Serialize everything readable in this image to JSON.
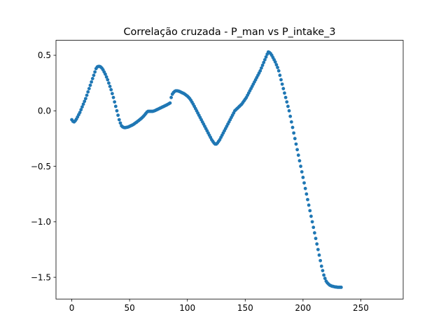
{
  "chart_data": {
    "type": "scatter",
    "title": "Correlação cruzada - P_man vs P_intake_3",
    "xlabel": "",
    "ylabel": "",
    "xlim": [
      -13.65,
      286.65
    ],
    "ylim": [
      -1.696,
      0.635
    ],
    "xticks": [
      0,
      50,
      100,
      150,
      200,
      250
    ],
    "xtick_labels": [
      "0",
      "50",
      "100",
      "150",
      "200",
      "250"
    ],
    "yticks": [
      0.5,
      0.0,
      -0.5,
      -1.0,
      -1.5
    ],
    "ytick_labels": [
      "0.5",
      "0.0",
      "−0.5",
      "−1.0",
      "−1.5"
    ],
    "grid": false,
    "legend": "none",
    "marker_color": "#1f77b4",
    "series": [
      {
        "x_start": 0,
        "x_step": 1,
        "values": [
          -0.08,
          -0.095,
          -0.1,
          -0.09,
          -0.075,
          -0.055,
          -0.035,
          -0.015,
          0.01,
          0.035,
          0.06,
          0.085,
          0.11,
          0.14,
          0.17,
          0.2,
          0.23,
          0.26,
          0.29,
          0.32,
          0.35,
          0.38,
          0.395,
          0.4,
          0.4,
          0.395,
          0.385,
          0.37,
          0.35,
          0.33,
          0.305,
          0.28,
          0.25,
          0.22,
          0.19,
          0.155,
          0.12,
          0.08,
          0.04,
          0.0,
          -0.04,
          -0.08,
          -0.11,
          -0.135,
          -0.145,
          -0.15,
          -0.152,
          -0.15,
          -0.148,
          -0.145,
          -0.14,
          -0.135,
          -0.13,
          -0.125,
          -0.118,
          -0.11,
          -0.103,
          -0.095,
          -0.087,
          -0.078,
          -0.07,
          -0.06,
          -0.05,
          -0.038,
          -0.025,
          -0.012,
          -0.005,
          -0.005,
          -0.005,
          -0.005,
          -0.005,
          -0.002,
          0.002,
          0.007,
          0.012,
          0.017,
          0.022,
          0.027,
          0.032,
          0.037,
          0.042,
          0.047,
          0.052,
          0.058,
          0.064,
          0.07,
          0.12,
          0.15,
          0.165,
          0.175,
          0.18,
          0.18,
          0.178,
          0.175,
          0.17,
          0.165,
          0.16,
          0.155,
          0.148,
          0.14,
          0.132,
          0.122,
          0.11,
          0.095,
          0.078,
          0.06,
          0.04,
          0.02,
          0.0,
          -0.02,
          -0.04,
          -0.06,
          -0.08,
          -0.1,
          -0.12,
          -0.14,
          -0.16,
          -0.18,
          -0.2,
          -0.22,
          -0.24,
          -0.26,
          -0.275,
          -0.29,
          -0.3,
          -0.3,
          -0.29,
          -0.275,
          -0.26,
          -0.24,
          -0.22,
          -0.2,
          -0.18,
          -0.16,
          -0.14,
          -0.12,
          -0.1,
          -0.08,
          -0.06,
          -0.04,
          -0.02,
          0.0,
          0.01,
          0.02,
          0.03,
          0.04,
          0.05,
          0.06,
          0.075,
          0.09,
          0.105,
          0.12,
          0.14,
          0.16,
          0.18,
          0.2,
          0.22,
          0.24,
          0.26,
          0.28,
          0.3,
          0.32,
          0.34,
          0.36,
          0.385,
          0.41,
          0.435,
          0.46,
          0.485,
          0.51,
          0.53,
          0.525,
          0.515,
          0.5,
          0.48,
          0.46,
          0.44,
          0.415,
          0.39,
          0.36,
          0.32,
          0.28,
          0.24,
          0.2,
          0.16,
          0.12,
          0.08,
          0.04,
          0.0,
          -0.05,
          -0.1,
          -0.15,
          -0.2,
          -0.25,
          -0.3,
          -0.35,
          -0.4,
          -0.45,
          -0.5,
          -0.55,
          -0.6,
          -0.65,
          -0.7,
          -0.75,
          -0.8,
          -0.85,
          -0.9,
          -0.95,
          -1.0,
          -1.05,
          -1.1,
          -1.15,
          -1.2,
          -1.25,
          -1.3,
          -1.35,
          -1.4,
          -1.44,
          -1.48,
          -1.51,
          -1.535,
          -1.55,
          -1.56,
          -1.57,
          -1.575,
          -1.58,
          -1.582,
          -1.585,
          -1.587,
          -1.588,
          -1.59,
          -1.59,
          -1.59,
          -1.59
        ]
      }
    ]
  }
}
